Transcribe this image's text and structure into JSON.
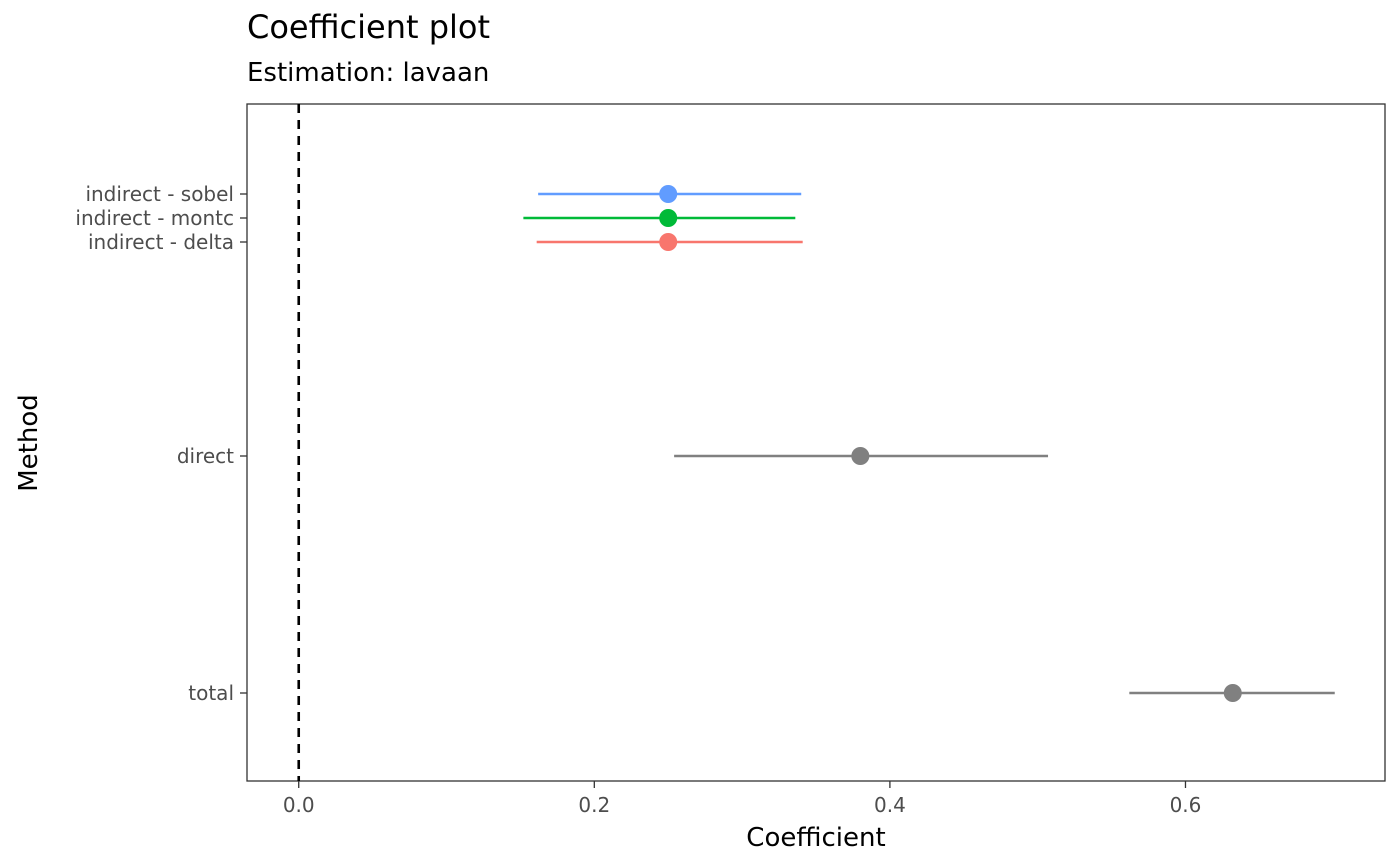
{
  "chart_data": {
    "type": "scatter",
    "subtype": "coefficient-plot",
    "title": "Coefficient plot",
    "subtitle": "Estimation: lavaan",
    "xlabel": "Coefficient",
    "ylabel": "Method",
    "xlim": [
      -0.035,
      0.735
    ],
    "x_ticks": [
      0.0,
      0.2,
      0.4,
      0.6
    ],
    "x_tick_labels": [
      "0.0",
      "0.2",
      "0.4",
      "0.6"
    ],
    "reference_line": {
      "x": 0,
      "style": "dashed",
      "color": "#000000"
    },
    "grid": false,
    "legend": "none",
    "categories": [
      "indirect - sobel",
      "indirect - montc",
      "indirect - delta",
      "direct",
      "total"
    ],
    "points": [
      {
        "label": "indirect - sobel",
        "estimate": 0.25,
        "ci_low": 0.162,
        "ci_high": 0.34,
        "color": "#619CFF"
      },
      {
        "label": "indirect - montc",
        "estimate": 0.25,
        "ci_low": 0.152,
        "ci_high": 0.336,
        "color": "#00BA38"
      },
      {
        "label": "indirect - delta",
        "estimate": 0.25,
        "ci_low": 0.161,
        "ci_high": 0.341,
        "color": "#F8766D"
      },
      {
        "label": "direct",
        "estimate": 0.38,
        "ci_low": 0.254,
        "ci_high": 0.507,
        "color": "#808080"
      },
      {
        "label": "total",
        "estimate": 0.632,
        "ci_low": 0.562,
        "ci_high": 0.701,
        "color": "#808080"
      }
    ]
  }
}
